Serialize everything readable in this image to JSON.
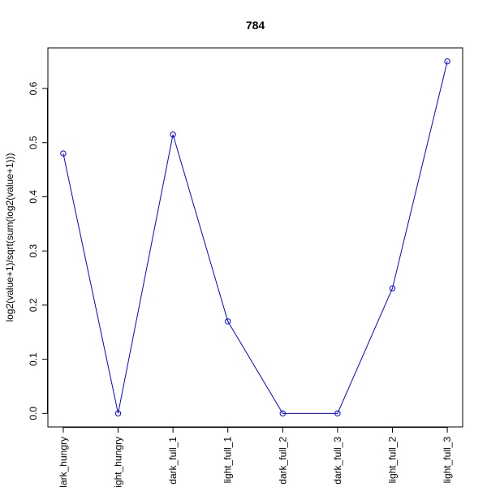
{
  "chart_data": {
    "type": "line",
    "title": "784",
    "xlabel": "",
    "ylabel": "log2(value+1)/sqrt(sum(log2(value+1)))",
    "categories": [
      "dark_hungry",
      "light_hungry",
      "dark_full_1",
      "light_full_1",
      "dark_full_2",
      "dark_full_3",
      "light_full_2",
      "light_full_3"
    ],
    "series": [
      {
        "values": [
          0.48,
          0.0,
          0.515,
          0.17,
          0.0,
          0.0,
          0.231,
          0.65
        ]
      }
    ],
    "ylim": [
      -0.025,
      0.675
    ],
    "yticks": [
      "0.0",
      "0.1",
      "0.2",
      "0.3",
      "0.4",
      "0.5",
      "0.6"
    ],
    "line_color": "#0000ff",
    "marker": "open-circle",
    "grid": false,
    "legend": "none"
  }
}
